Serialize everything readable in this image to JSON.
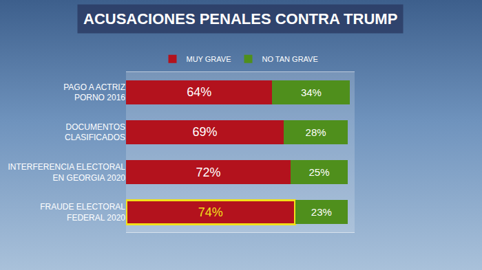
{
  "chart_data": {
    "type": "bar",
    "title": "ACUSACIONES PENALES CONTRA TRUMP",
    "orientation": "horizontal",
    "stacked": true,
    "data_labels": true,
    "tick_labels": "y",
    "grid": false,
    "legend": "top",
    "categories": [
      "PAGO A ACTRIZ\nPORNO 2016",
      "DOCUMENTOS\nCLASIFICADOS",
      "INTERFERENCIA ELECTORAL\nEN GEORGIA 2020",
      "FRAUDE ELECTORAL\nFEDERAL 2020"
    ],
    "series": [
      {
        "name": "MUY GRAVE",
        "color": "#b3121d",
        "values": [
          64,
          69,
          72,
          74
        ],
        "value_labels": [
          "64%",
          "69%",
          "72%",
          "74%"
        ]
      },
      {
        "name": "NO TAN GRAVE",
        "color": "#4f8f1c",
        "values": [
          34,
          28,
          25,
          23
        ],
        "value_labels": [
          "34%",
          "28%",
          "25%",
          "23%"
        ]
      }
    ],
    "xlim": [
      0,
      100
    ]
  }
}
